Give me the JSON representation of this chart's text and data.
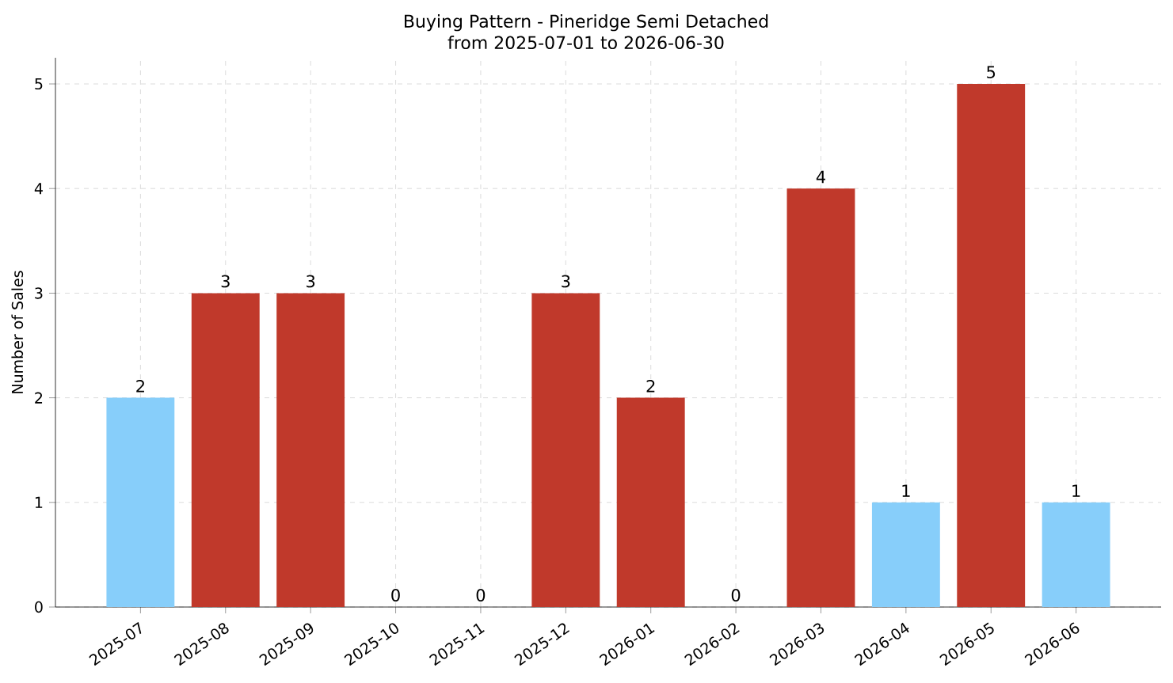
{
  "chart_data": {
    "type": "bar",
    "title": "Buying Pattern - Pineridge Semi Detached",
    "subtitle": "from 2025-07-01 to 2026-06-30",
    "ylabel": "Number of Sales",
    "categories": [
      "2025-07",
      "2025-08",
      "2025-09",
      "2025-10",
      "2025-11",
      "2025-12",
      "2026-01",
      "2026-02",
      "2026-03",
      "2026-04",
      "2026-05",
      "2026-06"
    ],
    "values": [
      2,
      3,
      3,
      0,
      0,
      3,
      2,
      0,
      4,
      1,
      5,
      1
    ],
    "colors": [
      "#87cefa",
      "#c0392b",
      "#c0392b",
      "#c0392b",
      "#c0392b",
      "#c0392b",
      "#c0392b",
      "#c0392b",
      "#c0392b",
      "#87cefa",
      "#c0392b",
      "#87cefa"
    ],
    "ylim": [
      0,
      5.25
    ],
    "yticks": [
      0,
      1,
      2,
      3,
      4,
      5
    ],
    "grid": true,
    "data_labels": true
  }
}
